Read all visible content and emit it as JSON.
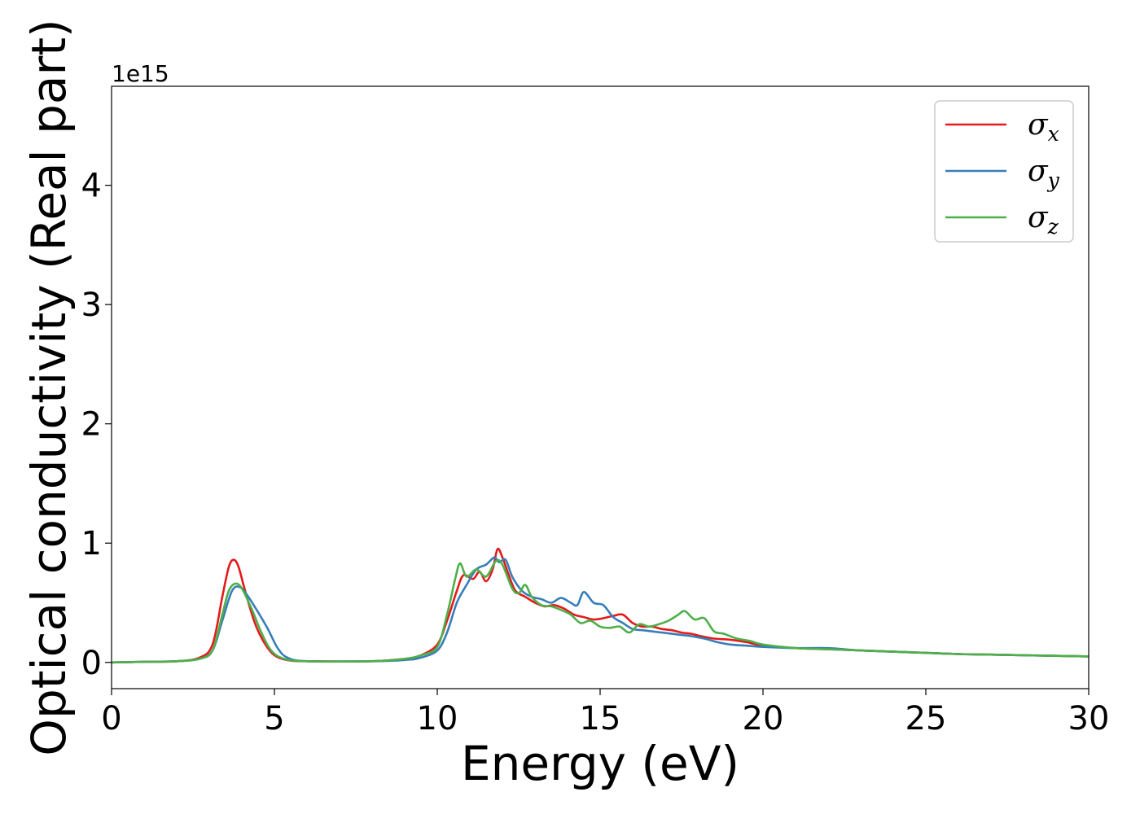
{
  "chart_data": {
    "type": "line",
    "title": "",
    "xlabel": "Energy (eV)",
    "ylabel": "Optical conductivity (Real part)",
    "y_offset_label": "1e15",
    "xlim": [
      0,
      30
    ],
    "ylim": [
      -0.22,
      4.83
    ],
    "y_scale": 1000000000000000.0,
    "xticks": [
      0,
      5,
      10,
      15,
      20,
      25,
      30
    ],
    "yticks": [
      0,
      1,
      2,
      3,
      4
    ],
    "xtick_labels": [
      "0",
      "5",
      "10",
      "15",
      "20",
      "25",
      "30"
    ],
    "ytick_labels": [
      "0",
      "1",
      "2",
      "3",
      "4"
    ],
    "grid": false,
    "legend_position": "top-right",
    "series": [
      {
        "name": "σx",
        "legend_base": "σ",
        "legend_sub": "x",
        "color": "#e41a1c",
        "points": [
          [
            0,
            0
          ],
          [
            1,
            0.005
          ],
          [
            2,
            0.01
          ],
          [
            2.7,
            0.04
          ],
          [
            3.1,
            0.15
          ],
          [
            3.4,
            0.55
          ],
          [
            3.6,
            0.8
          ],
          [
            3.75,
            0.86
          ],
          [
            3.9,
            0.8
          ],
          [
            4.1,
            0.6
          ],
          [
            4.4,
            0.33
          ],
          [
            4.7,
            0.16
          ],
          [
            5.0,
            0.06
          ],
          [
            5.4,
            0.02
          ],
          [
            6,
            0.01
          ],
          [
            8,
            0.01
          ],
          [
            9.0,
            0.03
          ],
          [
            9.5,
            0.06
          ],
          [
            10.0,
            0.15
          ],
          [
            10.3,
            0.35
          ],
          [
            10.6,
            0.6
          ],
          [
            10.8,
            0.73
          ],
          [
            11.1,
            0.7
          ],
          [
            11.3,
            0.76
          ],
          [
            11.5,
            0.68
          ],
          [
            11.7,
            0.78
          ],
          [
            11.85,
            0.95
          ],
          [
            12.0,
            0.88
          ],
          [
            12.2,
            0.73
          ],
          [
            12.4,
            0.6
          ],
          [
            12.7,
            0.55
          ],
          [
            13.0,
            0.5
          ],
          [
            13.3,
            0.47
          ],
          [
            13.6,
            0.48
          ],
          [
            13.9,
            0.45
          ],
          [
            14.2,
            0.4
          ],
          [
            14.5,
            0.38
          ],
          [
            14.8,
            0.36
          ],
          [
            15.1,
            0.37
          ],
          [
            15.4,
            0.39
          ],
          [
            15.7,
            0.4
          ],
          [
            16.0,
            0.33
          ],
          [
            16.3,
            0.3
          ],
          [
            16.6,
            0.3
          ],
          [
            16.9,
            0.28
          ],
          [
            17.2,
            0.27
          ],
          [
            17.5,
            0.25
          ],
          [
            17.8,
            0.24
          ],
          [
            18.1,
            0.22
          ],
          [
            18.5,
            0.2
          ],
          [
            19,
            0.19
          ],
          [
            19.5,
            0.17
          ],
          [
            20,
            0.14
          ],
          [
            21,
            0.12
          ],
          [
            22,
            0.11
          ],
          [
            23,
            0.1
          ],
          [
            24,
            0.09
          ],
          [
            25,
            0.08
          ],
          [
            26,
            0.07
          ],
          [
            27,
            0.065
          ],
          [
            28,
            0.06
          ],
          [
            29,
            0.055
          ],
          [
            30,
            0.05
          ]
        ]
      },
      {
        "name": "σy",
        "legend_base": "σ",
        "legend_sub": "y",
        "color": "#377eb8",
        "points": [
          [
            0,
            0
          ],
          [
            1,
            0.005
          ],
          [
            2,
            0.01
          ],
          [
            2.7,
            0.03
          ],
          [
            3.1,
            0.1
          ],
          [
            3.4,
            0.35
          ],
          [
            3.7,
            0.6
          ],
          [
            3.95,
            0.63
          ],
          [
            4.2,
            0.55
          ],
          [
            4.5,
            0.42
          ],
          [
            4.8,
            0.28
          ],
          [
            5.1,
            0.12
          ],
          [
            5.4,
            0.04
          ],
          [
            6,
            0.01
          ],
          [
            8,
            0.01
          ],
          [
            9.0,
            0.02
          ],
          [
            9.5,
            0.04
          ],
          [
            10.0,
            0.1
          ],
          [
            10.3,
            0.25
          ],
          [
            10.6,
            0.5
          ],
          [
            10.9,
            0.65
          ],
          [
            11.2,
            0.78
          ],
          [
            11.5,
            0.82
          ],
          [
            11.75,
            0.88
          ],
          [
            11.9,
            0.84
          ],
          [
            12.1,
            0.86
          ],
          [
            12.3,
            0.72
          ],
          [
            12.6,
            0.6
          ],
          [
            12.9,
            0.55
          ],
          [
            13.2,
            0.53
          ],
          [
            13.5,
            0.5
          ],
          [
            13.8,
            0.54
          ],
          [
            14.1,
            0.5
          ],
          [
            14.3,
            0.48
          ],
          [
            14.5,
            0.59
          ],
          [
            14.8,
            0.5
          ],
          [
            15.1,
            0.48
          ],
          [
            15.4,
            0.38
          ],
          [
            15.7,
            0.33
          ],
          [
            16.0,
            0.28
          ],
          [
            16.3,
            0.27
          ],
          [
            16.6,
            0.26
          ],
          [
            16.9,
            0.25
          ],
          [
            17.2,
            0.24
          ],
          [
            17.5,
            0.23
          ],
          [
            17.8,
            0.22
          ],
          [
            18.2,
            0.2
          ],
          [
            18.6,
            0.17
          ],
          [
            19,
            0.15
          ],
          [
            19.5,
            0.14
          ],
          [
            20,
            0.13
          ],
          [
            21,
            0.12
          ],
          [
            22,
            0.12
          ],
          [
            23,
            0.1
          ],
          [
            24,
            0.09
          ],
          [
            25,
            0.08
          ],
          [
            26,
            0.07
          ],
          [
            27,
            0.065
          ],
          [
            28,
            0.06
          ],
          [
            29,
            0.055
          ],
          [
            30,
            0.05
          ]
        ]
      },
      {
        "name": "σz",
        "legend_base": "σ",
        "legend_sub": "z",
        "color": "#4daf4a",
        "points": [
          [
            0,
            0
          ],
          [
            1,
            0.005
          ],
          [
            2,
            0.01
          ],
          [
            2.7,
            0.03
          ],
          [
            3.1,
            0.1
          ],
          [
            3.4,
            0.4
          ],
          [
            3.6,
            0.6
          ],
          [
            3.8,
            0.66
          ],
          [
            4.0,
            0.62
          ],
          [
            4.3,
            0.45
          ],
          [
            4.6,
            0.25
          ],
          [
            4.9,
            0.1
          ],
          [
            5.3,
            0.03
          ],
          [
            6,
            0.01
          ],
          [
            8,
            0.01
          ],
          [
            9.0,
            0.03
          ],
          [
            9.5,
            0.06
          ],
          [
            10.0,
            0.13
          ],
          [
            10.3,
            0.4
          ],
          [
            10.55,
            0.7
          ],
          [
            10.7,
            0.83
          ],
          [
            10.9,
            0.72
          ],
          [
            11.2,
            0.78
          ],
          [
            11.5,
            0.72
          ],
          [
            11.8,
            0.85
          ],
          [
            12.0,
            0.82
          ],
          [
            12.3,
            0.62
          ],
          [
            12.5,
            0.58
          ],
          [
            12.7,
            0.65
          ],
          [
            12.9,
            0.55
          ],
          [
            13.2,
            0.48
          ],
          [
            13.5,
            0.47
          ],
          [
            13.8,
            0.44
          ],
          [
            14.1,
            0.4
          ],
          [
            14.4,
            0.33
          ],
          [
            14.7,
            0.35
          ],
          [
            15.0,
            0.3
          ],
          [
            15.3,
            0.29
          ],
          [
            15.6,
            0.3
          ],
          [
            15.9,
            0.25
          ],
          [
            16.2,
            0.32
          ],
          [
            16.5,
            0.3
          ],
          [
            16.8,
            0.32
          ],
          [
            17.1,
            0.35
          ],
          [
            17.4,
            0.4
          ],
          [
            17.6,
            0.43
          ],
          [
            17.9,
            0.36
          ],
          [
            18.2,
            0.37
          ],
          [
            18.5,
            0.26
          ],
          [
            18.8,
            0.24
          ],
          [
            19.2,
            0.2
          ],
          [
            19.6,
            0.18
          ],
          [
            20,
            0.15
          ],
          [
            21,
            0.12
          ],
          [
            22,
            0.11
          ],
          [
            23,
            0.1
          ],
          [
            24,
            0.09
          ],
          [
            25,
            0.08
          ],
          [
            26,
            0.07
          ],
          [
            27,
            0.065
          ],
          [
            28,
            0.06
          ],
          [
            29,
            0.055
          ],
          [
            30,
            0.05
          ]
        ]
      }
    ]
  }
}
